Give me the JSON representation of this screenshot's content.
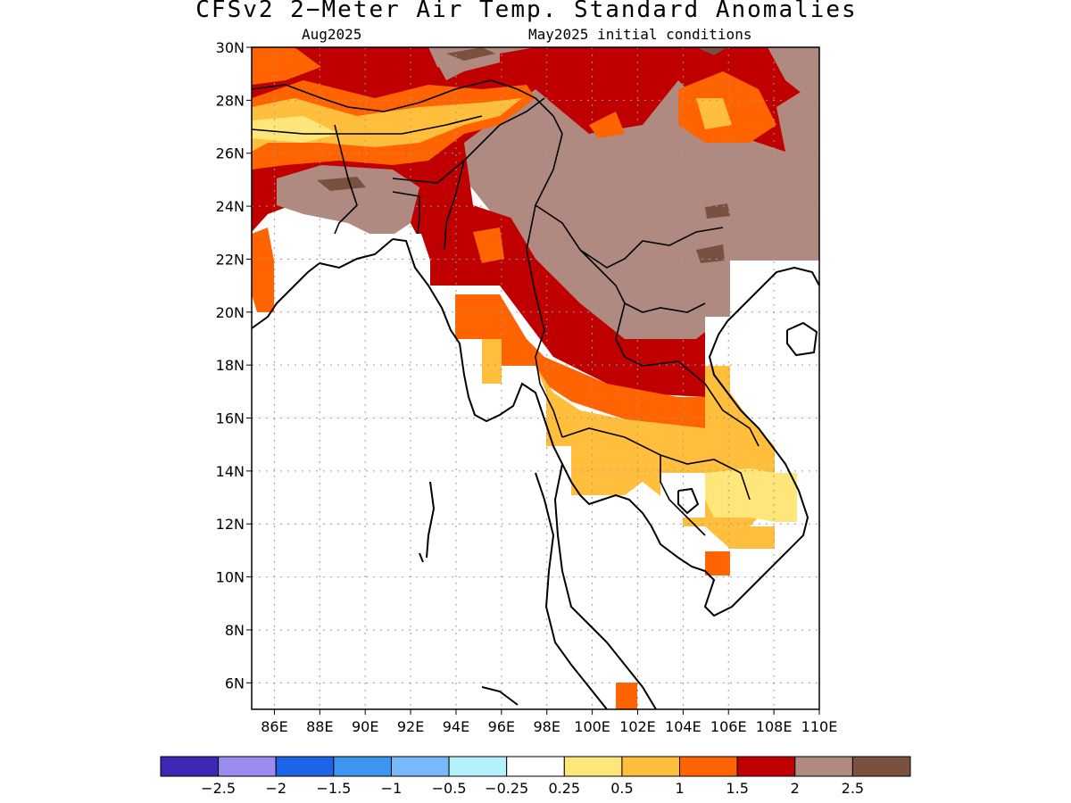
{
  "header": {
    "title": "CFSv2 2−Meter Air Temp. Standard Anomalies",
    "target_month": "Aug2025",
    "initial_conditions": "May2025 initial conditions"
  },
  "map": {
    "lat_labels": [
      "30N",
      "28N",
      "26N",
      "24N",
      "22N",
      "20N",
      "18N",
      "16N",
      "14N",
      "12N",
      "10N",
      "8N",
      "6N"
    ],
    "lon_labels": [
      "86E",
      "88E",
      "90E",
      "92E",
      "94E",
      "96E",
      "98E",
      "100E",
      "102E",
      "104E",
      "106E",
      "108E",
      "110E"
    ],
    "lat_range": [
      5,
      30
    ],
    "lon_range": [
      85,
      110
    ],
    "grid": true
  },
  "legend": {
    "colors": [
      "#3c28b4",
      "#9b8cf0",
      "#1e64e6",
      "#3c96f0",
      "#78b9fa",
      "#b4f0fa",
      "#ffffff",
      "#ffe67a",
      "#ffbe3c",
      "#ff6400",
      "#c00000",
      "#b08a80",
      "#7a5040"
    ],
    "labels": [
      "−2.5",
      "−2",
      "−1.5",
      "−1",
      "−0.5",
      "−0.25",
      "0.25",
      "0.5",
      "1",
      "1.5",
      "2",
      "2.5"
    ]
  },
  "colors": {
    "c05": "#ffe67a",
    "c1": "#ffbe3c",
    "c15": "#ff6400",
    "c2": "#c00000",
    "c25": "#b08a80",
    "c3": "#7a5040"
  }
}
